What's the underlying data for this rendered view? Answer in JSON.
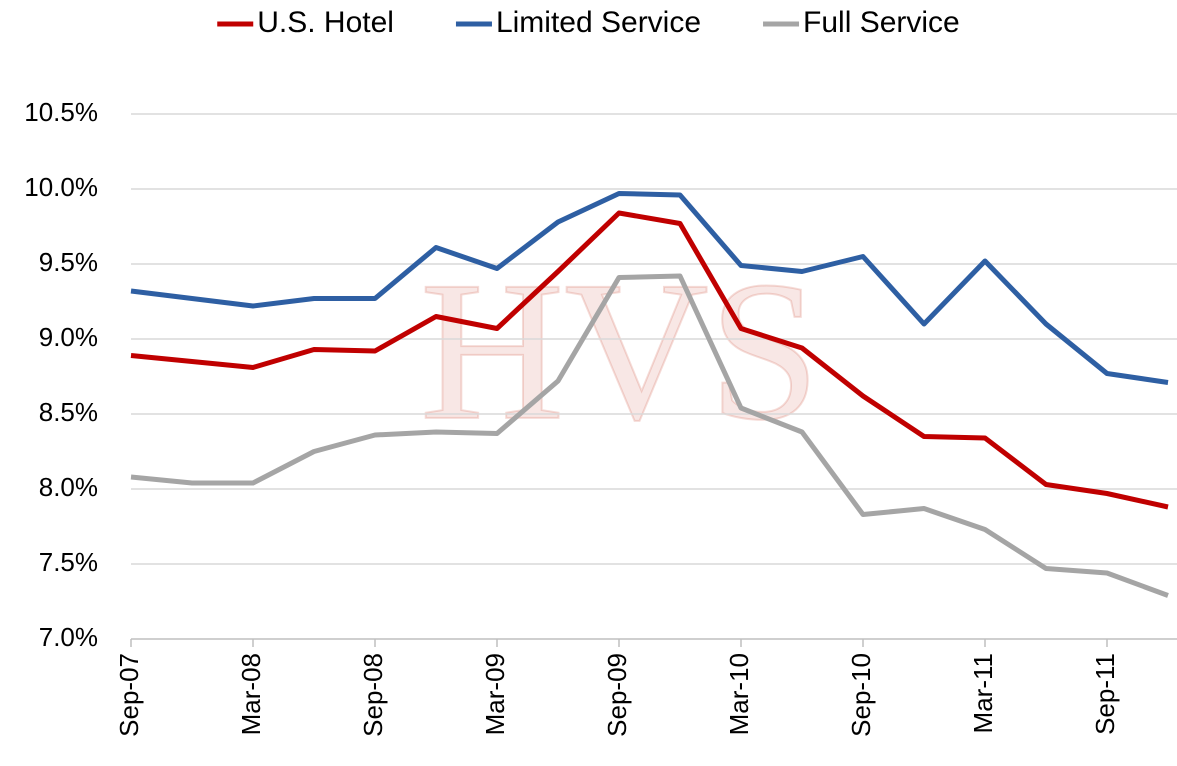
{
  "chart_data": {
    "type": "line",
    "watermark": "HVS",
    "categories": [
      "Sep-07",
      null,
      "Mar-08",
      null,
      "Sep-08",
      null,
      "Mar-09",
      null,
      "Sep-09",
      null,
      "Mar-10",
      null,
      "Sep-10",
      null,
      "Mar-11",
      null,
      "Sep-11",
      null
    ],
    "series": [
      {
        "name": "U.S. Hotel",
        "color": "#c00000",
        "values": [
          8.89,
          8.85,
          8.81,
          8.93,
          8.92,
          9.15,
          9.07,
          9.45,
          9.84,
          9.77,
          9.07,
          8.94,
          8.62,
          8.35,
          8.34,
          8.03,
          7.97,
          7.88
        ]
      },
      {
        "name": "Limited Service",
        "color": "#2e5fa3",
        "values": [
          9.32,
          9.27,
          9.22,
          9.27,
          9.27,
          9.61,
          9.47,
          9.78,
          9.97,
          9.96,
          9.49,
          9.45,
          9.55,
          9.1,
          9.52,
          9.1,
          8.77,
          8.71
        ]
      },
      {
        "name": "Full Service",
        "color": "#a5a5a5",
        "values": [
          8.08,
          8.04,
          8.04,
          8.25,
          8.36,
          8.38,
          8.37,
          8.72,
          9.41,
          9.42,
          8.54,
          8.38,
          7.83,
          7.87,
          7.73,
          7.47,
          7.44,
          7.29
        ]
      }
    ],
    "ylim": [
      7.0,
      10.5
    ],
    "yticks": [
      {
        "value": 7.0,
        "label": "7.0%"
      },
      {
        "value": 7.5,
        "label": "7.5%"
      },
      {
        "value": 8.0,
        "label": "8.0%"
      },
      {
        "value": 8.5,
        "label": "8.5%"
      },
      {
        "value": 9.0,
        "label": "9.0%"
      },
      {
        "value": 9.5,
        "label": "9.5%"
      },
      {
        "value": 10.0,
        "label": "10.0%"
      },
      {
        "value": 10.5,
        "label": "10.5%"
      }
    ],
    "grid": true,
    "legend": "top"
  }
}
